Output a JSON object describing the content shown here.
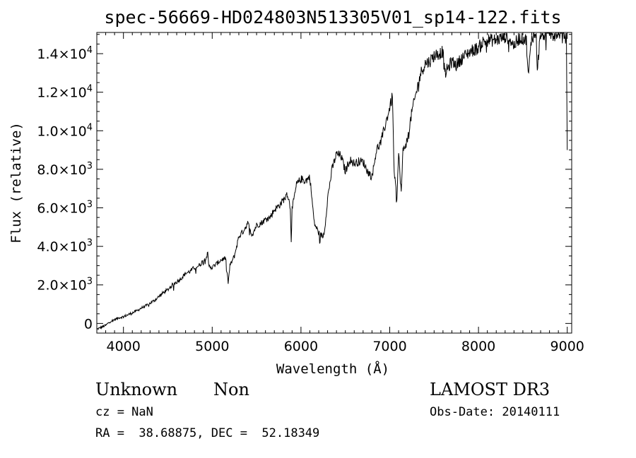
{
  "chart_data": {
    "type": "line",
    "title": "spec-56669-HD024803N513305V01_sp14-122.fits",
    "xlabel": "Wavelength (Å)",
    "ylabel": "Flux (relative)",
    "xlim": [
      3700,
      9050
    ],
    "ylim": [
      -500,
      15100
    ],
    "grid": false,
    "x_ticks": [
      4000,
      5000,
      6000,
      7000,
      8000,
      9000
    ],
    "x_tick_labels": [
      "4000",
      "5000",
      "6000",
      "7000",
      "8000",
      "9000"
    ],
    "y_ticks": [
      0,
      2000,
      4000,
      6000,
      8000,
      10000,
      12000,
      14000
    ],
    "y_tick_labels": [
      {
        "mant": "0",
        "exp": ""
      },
      {
        "mant": "2.0×10",
        "exp": "3"
      },
      {
        "mant": "4.0×10",
        "exp": "3"
      },
      {
        "mant": "6.0×10",
        "exp": "3"
      },
      {
        "mant": "8.0×10",
        "exp": "3"
      },
      {
        "mant": "1.0×10",
        "exp": "4"
      },
      {
        "mant": "1.2×10",
        "exp": "4"
      },
      {
        "mant": "1.4×10",
        "exp": "4"
      }
    ],
    "series": [
      {
        "x": [
          3700,
          3750,
          3800,
          3850,
          3900,
          3950,
          4000,
          4050,
          4100,
          4150,
          4200,
          4250,
          4300,
          4350,
          4400,
          4450,
          4500,
          4550,
          4600,
          4650,
          4700,
          4750,
          4800,
          4850,
          4900,
          4950,
          4960,
          5000,
          5050,
          5100,
          5150,
          5180,
          5200,
          5250,
          5300,
          5350,
          5400,
          5450,
          5500,
          5550,
          5600,
          5650,
          5700,
          5750,
          5800,
          5850,
          5880,
          5890,
          5900,
          5950,
          6000,
          6050,
          6100,
          6150,
          6200,
          6250,
          6270,
          6300,
          6350,
          6400,
          6450,
          6500,
          6550,
          6600,
          6650,
          6700,
          6750,
          6800,
          6850,
          6900,
          6950,
          7000,
          7030,
          7050,
          7080,
          7100,
          7130,
          7150,
          7200,
          7250,
          7300,
          7350,
          7400,
          7450,
          7500,
          7550,
          7600,
          7620,
          7650,
          7700,
          7750,
          7800,
          7850,
          7900,
          7950,
          8000,
          8050,
          8100,
          8150,
          8200,
          8250,
          8300,
          8350,
          8400,
          8450,
          8500,
          8540,
          8560,
          8600,
          8650,
          8662,
          8700,
          8750,
          8800,
          8850,
          8900,
          8950,
          8990,
          9000
        ],
        "y": [
          -300,
          -200,
          -100,
          100,
          200,
          300,
          350,
          450,
          550,
          650,
          800,
          900,
          1050,
          1200,
          1400,
          1600,
          1750,
          2000,
          2150,
          2350,
          2600,
          2700,
          2900,
          3000,
          3250,
          3600,
          3000,
          2900,
          3100,
          3300,
          3400,
          2100,
          3000,
          3500,
          4500,
          4800,
          5200,
          4600,
          5100,
          5200,
          5400,
          5500,
          5900,
          6100,
          6400,
          6700,
          6000,
          4300,
          5900,
          7200,
          7500,
          7400,
          7600,
          5200,
          4700,
          4500,
          5000,
          6500,
          8000,
          8800,
          8700,
          7900,
          8500,
          8300,
          8400,
          8400,
          7900,
          7600,
          9000,
          9400,
          10300,
          11200,
          11800,
          7800,
          6500,
          8800,
          6800,
          9000,
          9500,
          11000,
          12000,
          13000,
          13500,
          13600,
          13900,
          14000,
          14100,
          12900,
          13200,
          13600,
          13400,
          13700,
          13900,
          14100,
          14200,
          14300,
          14600,
          14700,
          14700,
          14700,
          14800,
          14900,
          14800,
          14400,
          14800,
          14800,
          14700,
          12800,
          14900,
          15000,
          13300,
          15000,
          15000,
          15100,
          15000,
          15100,
          15100,
          14800,
          9000
        ]
      }
    ]
  },
  "info": {
    "object_name": "Unknown",
    "class_label": "Non",
    "survey": "LAMOST DR3",
    "redshift": "cz = NaN",
    "obs_date": "Obs-Date: 20140111",
    "coords": "RA =  38.68875, DEC =  52.18349"
  }
}
